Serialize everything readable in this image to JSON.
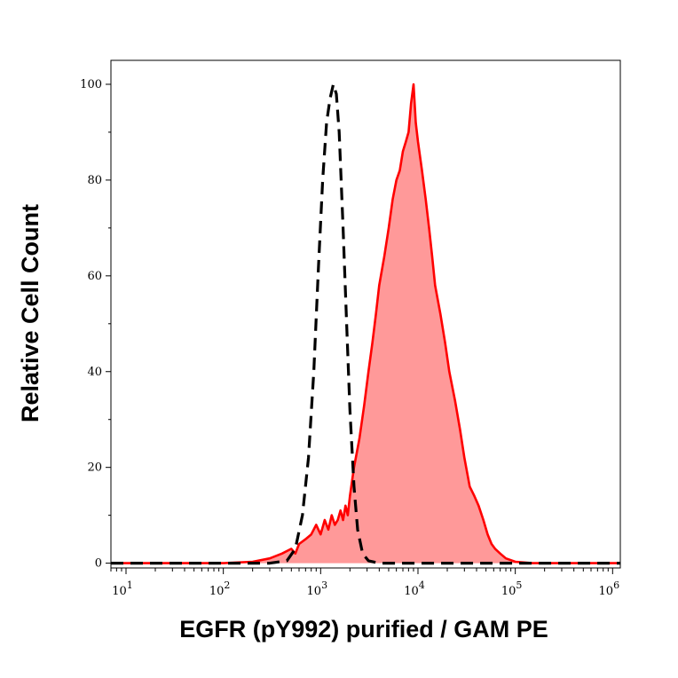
{
  "chart_data": {
    "type": "area",
    "x_scale": "log",
    "xlabel": "EGFR (pY992) purified / GAM PE",
    "ylabel": "Relative Cell Count",
    "xlim": [
      7,
      1200000
    ],
    "ylim": [
      -1,
      105
    ],
    "y_ticks": [
      {
        "value": 0,
        "label": "0"
      },
      {
        "value": 20,
        "label": "20"
      },
      {
        "value": 40,
        "label": "40"
      },
      {
        "value": 60,
        "label": "60"
      },
      {
        "value": 80,
        "label": "80"
      },
      {
        "value": 100,
        "label": "100"
      }
    ],
    "x_ticks": [
      {
        "value": 10,
        "base": "10",
        "exp": "1"
      },
      {
        "value": 100,
        "base": "10",
        "exp": "2"
      },
      {
        "value": 1000,
        "base": "10",
        "exp": "3"
      },
      {
        "value": 10000,
        "base": "10",
        "exp": "4"
      },
      {
        "value": 100000,
        "base": "10",
        "exp": "5"
      },
      {
        "value": 1000000,
        "base": "10",
        "exp": "6"
      }
    ],
    "grid": false,
    "series": [
      {
        "style": "dashed",
        "color": "#000000",
        "points": [
          [
            7,
            0
          ],
          [
            300,
            0
          ],
          [
            450,
            0.5
          ],
          [
            550,
            3
          ],
          [
            650,
            10
          ],
          [
            750,
            22
          ],
          [
            850,
            40
          ],
          [
            950,
            62
          ],
          [
            1050,
            80
          ],
          [
            1150,
            92
          ],
          [
            1250,
            97
          ],
          [
            1350,
            100
          ],
          [
            1450,
            98
          ],
          [
            1550,
            90
          ],
          [
            1700,
            70
          ],
          [
            1850,
            50
          ],
          [
            2000,
            32
          ],
          [
            2200,
            16
          ],
          [
            2400,
            7
          ],
          [
            2700,
            2
          ],
          [
            3100,
            0.5
          ],
          [
            4000,
            0
          ],
          [
            1200000,
            0
          ]
        ]
      },
      {
        "style": "filled",
        "color": "#ff0000",
        "fill": "#ff9999",
        "points": [
          [
            7,
            0
          ],
          [
            100,
            0
          ],
          [
            200,
            0.3
          ],
          [
            300,
            1
          ],
          [
            400,
            2
          ],
          [
            500,
            3
          ],
          [
            550,
            2
          ],
          [
            600,
            4
          ],
          [
            700,
            5
          ],
          [
            800,
            6
          ],
          [
            900,
            8
          ],
          [
            1000,
            6
          ],
          [
            1100,
            9
          ],
          [
            1200,
            7
          ],
          [
            1300,
            10
          ],
          [
            1400,
            8
          ],
          [
            1500,
            9
          ],
          [
            1600,
            11
          ],
          [
            1700,
            9
          ],
          [
            1800,
            12
          ],
          [
            1900,
            10
          ],
          [
            2000,
            14
          ],
          [
            2200,
            20
          ],
          [
            2500,
            26
          ],
          [
            2800,
            33
          ],
          [
            3100,
            40
          ],
          [
            3400,
            46
          ],
          [
            3700,
            52
          ],
          [
            4000,
            58
          ],
          [
            4500,
            64
          ],
          [
            5000,
            70
          ],
          [
            5500,
            76
          ],
          [
            6000,
            80
          ],
          [
            6500,
            82
          ],
          [
            7000,
            86
          ],
          [
            7500,
            88
          ],
          [
            8000,
            90
          ],
          [
            8500,
            96
          ],
          [
            9000,
            100
          ],
          [
            9500,
            92
          ],
          [
            10000,
            88
          ],
          [
            11000,
            82
          ],
          [
            12000,
            76
          ],
          [
            13000,
            70
          ],
          [
            14000,
            64
          ],
          [
            15000,
            58
          ],
          [
            17000,
            52
          ],
          [
            19000,
            46
          ],
          [
            21000,
            40
          ],
          [
            24000,
            34
          ],
          [
            27000,
            28
          ],
          [
            30000,
            22
          ],
          [
            34000,
            16
          ],
          [
            38000,
            14
          ],
          [
            42000,
            12
          ],
          [
            47000,
            9
          ],
          [
            52000,
            6
          ],
          [
            57000,
            4
          ],
          [
            62000,
            3
          ],
          [
            70000,
            2
          ],
          [
            80000,
            1
          ],
          [
            100000,
            0.3
          ],
          [
            150000,
            0
          ],
          [
            1200000,
            0
          ]
        ]
      }
    ]
  }
}
